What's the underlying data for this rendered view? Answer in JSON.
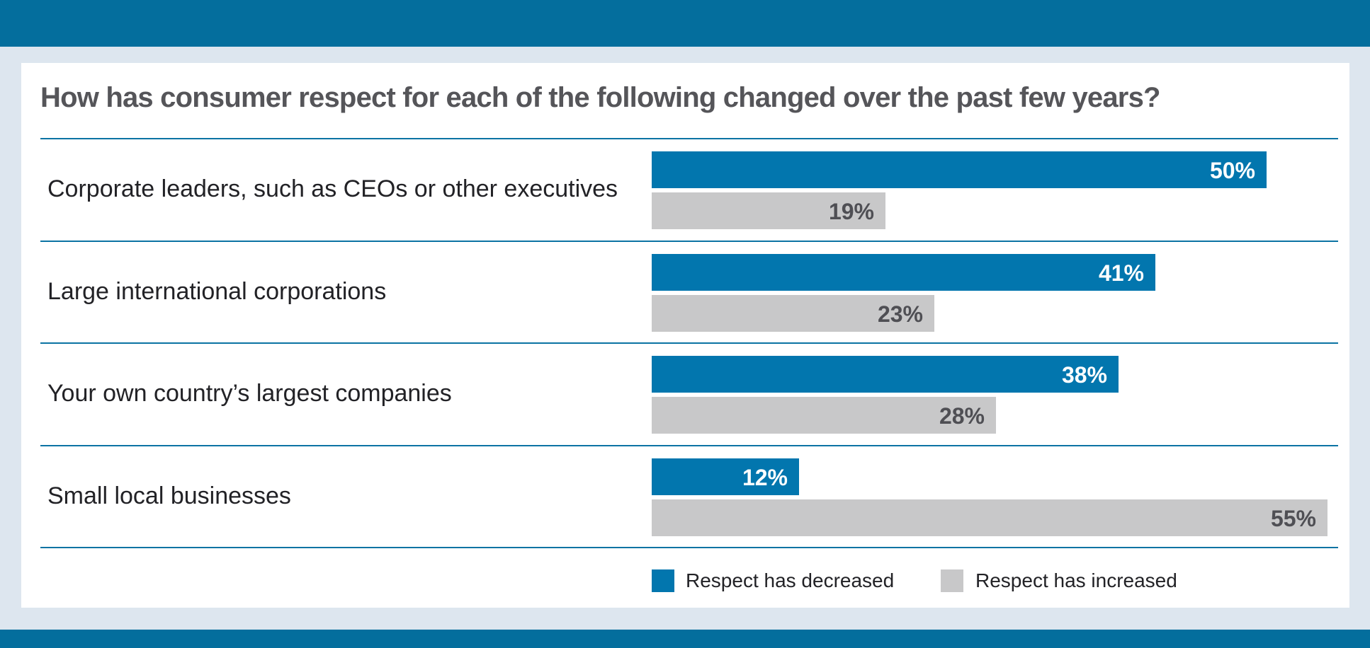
{
  "colors": {
    "frame": "#046e9d",
    "background": "#dde6ef",
    "decreased": "#0276ae",
    "increased": "#c8c8c9",
    "divider": "#0b73a3"
  },
  "chart_data": {
    "type": "bar",
    "orientation": "horizontal",
    "title": "How has consumer respect for each of the following changed over the past few years?",
    "categories": [
      "Corporate leaders, such as CEOs or other executives",
      "Large international corporations",
      "Your own country’s largest companies",
      "Small local businesses"
    ],
    "series": [
      {
        "name": "Respect has decreased",
        "values": [
          50,
          41,
          38,
          12
        ],
        "labels": [
          "50%",
          "41%",
          "38%",
          "12%"
        ]
      },
      {
        "name": "Respect has increased",
        "values": [
          19,
          23,
          28,
          55
        ],
        "labels": [
          "19%",
          "23%",
          "28%",
          "55%"
        ]
      }
    ],
    "unit": "%",
    "xlim": [
      0,
      55
    ],
    "grid": false,
    "legend_position": "bottom"
  }
}
